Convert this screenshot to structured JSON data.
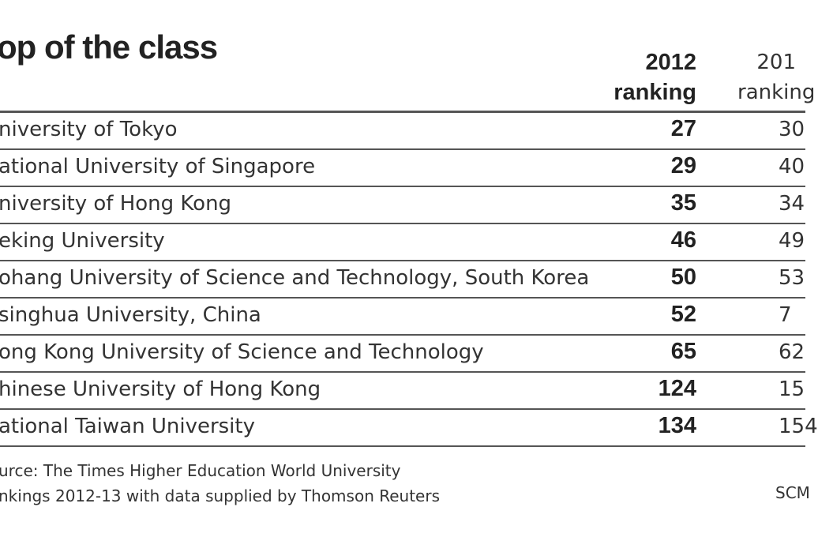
{
  "title": "op of the class",
  "headers": {
    "col2012": [
      "2012",
      "ranking"
    ],
    "col2011": [
      "201",
      "ranking"
    ]
  },
  "rows": [
    {
      "name": "niversity of Tokyo",
      "r2012": "27",
      "r2011": "30"
    },
    {
      "name": "ational University of Singapore",
      "r2012": "29",
      "r2011": "40"
    },
    {
      "name": "niversity of Hong Kong",
      "r2012": "35",
      "r2011": "34"
    },
    {
      "name": "eking University",
      "r2012": "46",
      "r2011": "49"
    },
    {
      "name": "ohang University of Science and Technology, South Korea",
      "r2012": "50",
      "r2011": "53"
    },
    {
      "name": "singhua University, China",
      "r2012": "52",
      "r2011": "7"
    },
    {
      "name": "ong Kong University of Science and Technology",
      "r2012": "65",
      "r2011": "62"
    },
    {
      "name": "hinese University of Hong Kong",
      "r2012": "124",
      "r2011": "15"
    },
    {
      "name": "ational Taiwan University",
      "r2012": "134",
      "r2011": "154"
    }
  ],
  "source": [
    "urce: The Times Higher Education World University",
    "nkings 2012-13 with data supplied by Thomson Reuters"
  ],
  "credit": "SCM"
}
